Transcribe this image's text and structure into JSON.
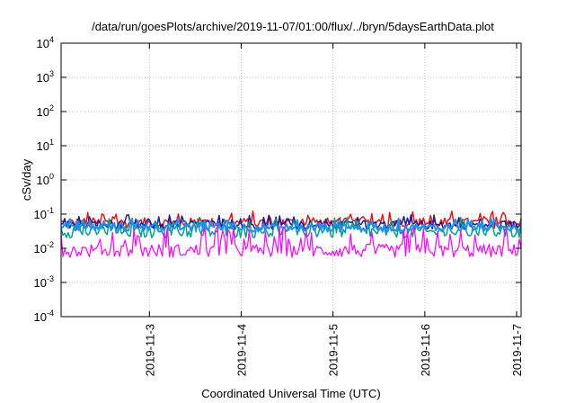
{
  "chart_data": {
    "type": "line",
    "title": "/data/run/goesPlots/archive/2019-11-07/01:00/flux/../bryn/5daysEarthData.plot",
    "xlabel": "Coordinated Universal Time (UTC)",
    "ylabel": "cSv/day",
    "y_scale": "log",
    "ylim": [
      0.0001,
      10000
    ],
    "y_ticks": [
      {
        "base": "10",
        "exp": "4"
      },
      {
        "base": "10",
        "exp": "3"
      },
      {
        "base": "10",
        "exp": "2"
      },
      {
        "base": "10",
        "exp": "1"
      },
      {
        "base": "10",
        "exp": "0"
      },
      {
        "base": "10",
        "exp": "-1"
      },
      {
        "base": "10",
        "exp": "-2"
      },
      {
        "base": "10",
        "exp": "-3"
      },
      {
        "base": "10",
        "exp": "-4"
      }
    ],
    "xlim": [
      "2019-11-02T00:55",
      "2019-11-07T01:10"
    ],
    "x_ticks": [
      {
        "label": "2019-11-3",
        "date": "2019-11-03T00:00"
      },
      {
        "label": "2019-11-4",
        "date": "2019-11-04T00:00"
      },
      {
        "label": "2019-11-5",
        "date": "2019-11-05T00:00"
      },
      {
        "label": "2019-11-6",
        "date": "2019-11-06T00:00"
      },
      {
        "label": "2019-11-7",
        "date": "2019-11-07T00:00"
      }
    ],
    "grid": true,
    "series": [
      {
        "color": "#e8141c",
        "base": 0.055,
        "spread": 0.35,
        "spike": 1.6,
        "lw": 1.5
      },
      {
        "color": "#1a1a9a",
        "base": 0.048,
        "spread": 0.3,
        "spike": 1.5,
        "lw": 1.5
      },
      {
        "color": "#00a38a",
        "base": 0.03,
        "spread": 0.4,
        "spike": 1.8,
        "lw": 1.5
      },
      {
        "color": "#2090f0",
        "base": 0.04,
        "spread": 0.28,
        "spike": 1.4,
        "lw": 2.0
      },
      {
        "color": "#ff00ff",
        "base": 0.0085,
        "spread": 0.45,
        "spike": 3.2,
        "lw": 1.2
      }
    ]
  }
}
